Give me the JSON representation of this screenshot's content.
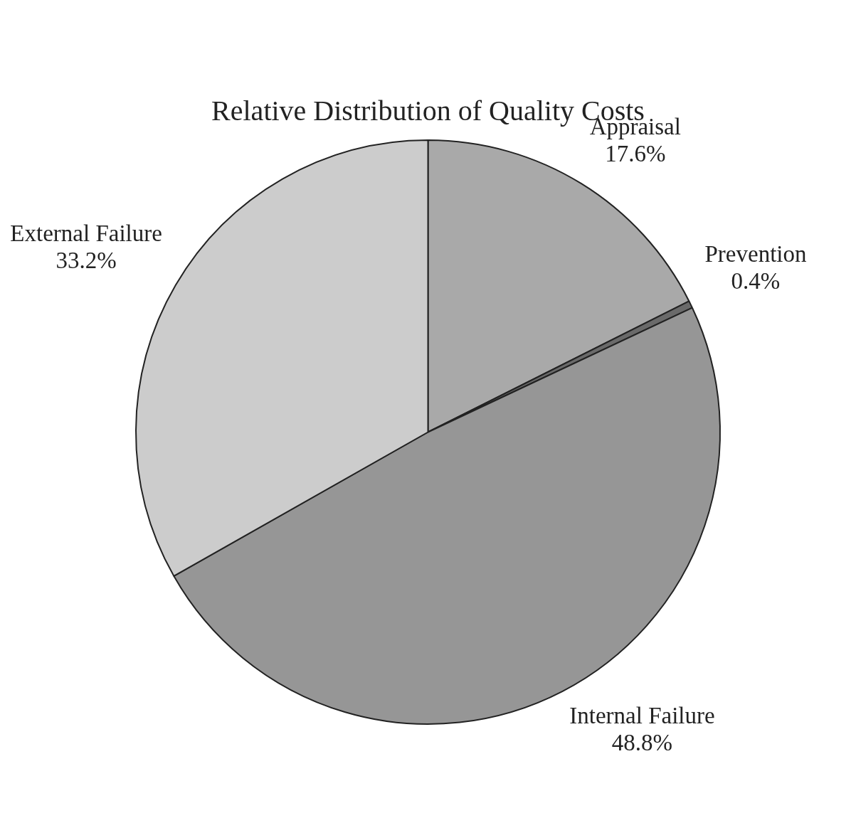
{
  "chart_data": {
    "type": "pie",
    "title": "Relative Distribution of Quality Costs",
    "categories": [
      "Appraisal",
      "Prevention",
      "Internal Failure",
      "External Failure"
    ],
    "values": [
      17.6,
      0.4,
      48.8,
      33.2
    ],
    "value_labels": [
      "17.6%",
      "0.4%",
      "48.8%",
      "33.2%"
    ],
    "colors": [
      "#a9a9a9",
      "#6a6a6a",
      "#969696",
      "#cccccc"
    ],
    "data_labels": true
  }
}
